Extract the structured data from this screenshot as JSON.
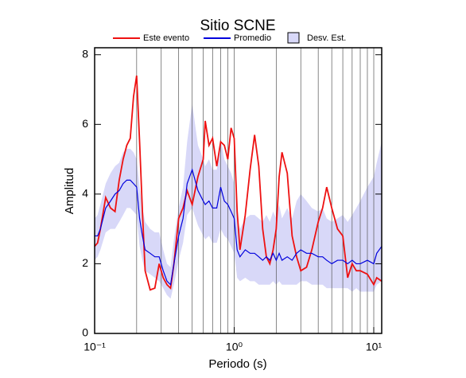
{
  "chart_data": {
    "type": "line",
    "title": "Sitio SCNE",
    "xlabel": "Periodo (s)",
    "ylabel": "Amplitud",
    "log_x": true,
    "xlim": [
      0.1,
      11.4
    ],
    "ylim": [
      0,
      8.2
    ],
    "xticks": [
      {
        "value": 0.1,
        "label": "10⁻¹"
      },
      {
        "value": 1,
        "label": "10⁰"
      },
      {
        "value": 10,
        "label": "10¹"
      }
    ],
    "xminorticks": [
      0.2,
      0.3,
      0.4,
      0.5,
      0.6,
      0.7,
      0.8,
      0.9,
      2,
      3,
      4,
      5,
      6,
      7,
      8,
      9
    ],
    "yticks": [
      0,
      2,
      4,
      6,
      8
    ],
    "grid": true,
    "x": [
      0.1,
      0.105,
      0.11,
      0.12,
      0.13,
      0.14,
      0.15,
      0.16,
      0.17,
      0.18,
      0.19,
      0.2,
      0.21,
      0.22,
      0.23,
      0.25,
      0.27,
      0.29,
      0.31,
      0.33,
      0.35,
      0.37,
      0.4,
      0.43,
      0.46,
      0.5,
      0.55,
      0.6,
      0.62,
      0.66,
      0.7,
      0.75,
      0.8,
      0.85,
      0.9,
      0.95,
      1.0,
      1.05,
      1.1,
      1.2,
      1.3,
      1.4,
      1.5,
      1.6,
      1.7,
      1.8,
      1.9,
      2.0,
      2.1,
      2.2,
      2.4,
      2.6,
      2.8,
      3.0,
      3.3,
      3.6,
      4.0,
      4.3,
      4.6,
      5.0,
      5.5,
      6.0,
      6.5,
      7.0,
      7.5,
      8.0,
      9.0,
      10.0,
      10.5,
      11.4
    ],
    "series": [
      {
        "name": "Este evento",
        "color": "#ee1111",
        "values": [
          2.5,
          2.6,
          3.0,
          3.9,
          3.6,
          3.5,
          4.4,
          5.0,
          5.4,
          5.6,
          6.8,
          7.4,
          5.5,
          3.5,
          1.8,
          1.25,
          1.3,
          2.0,
          1.6,
          1.4,
          1.3,
          2.0,
          3.3,
          3.6,
          4.1,
          3.7,
          4.5,
          5.0,
          6.1,
          5.4,
          5.6,
          4.8,
          5.5,
          5.4,
          5.0,
          5.9,
          5.6,
          3.5,
          2.4,
          3.4,
          4.7,
          5.7,
          4.8,
          3.0,
          2.2,
          2.0,
          2.4,
          3.0,
          4.5,
          5.2,
          4.6,
          2.8,
          2.2,
          1.8,
          1.9,
          2.4,
          3.2,
          3.6,
          4.2,
          3.6,
          3.0,
          2.8,
          1.6,
          2.0,
          1.8,
          1.8,
          1.7,
          1.4,
          1.6,
          1.5
        ]
      },
      {
        "name": "Promedio",
        "color": "#0000dd",
        "values": [
          2.8,
          2.8,
          3.0,
          3.6,
          3.8,
          4.0,
          4.1,
          4.3,
          4.4,
          4.4,
          4.3,
          4.2,
          3.3,
          2.8,
          2.4,
          2.3,
          2.2,
          2.2,
          1.8,
          1.5,
          1.4,
          2.0,
          2.8,
          3.3,
          4.3,
          4.7,
          4.1,
          3.8,
          3.7,
          3.8,
          3.6,
          3.6,
          4.2,
          3.8,
          3.7,
          3.5,
          3.3,
          2.4,
          2.2,
          2.4,
          2.3,
          2.3,
          2.2,
          2.1,
          2.2,
          2.1,
          2.3,
          2.1,
          2.3,
          2.1,
          2.2,
          2.1,
          2.3,
          2.4,
          2.3,
          2.3,
          2.2,
          2.2,
          2.1,
          2.0,
          2.1,
          2.1,
          2.0,
          2.1,
          2.0,
          2.0,
          2.1,
          2.0,
          2.3,
          2.5
        ]
      }
    ],
    "band": {
      "name": "Desv. Est.",
      "color": "#d8d8f8",
      "lower": [
        2.1,
        2.2,
        2.4,
        2.9,
        3.0,
        3.0,
        3.2,
        3.4,
        3.6,
        3.6,
        3.5,
        3.4,
        2.5,
        2.1,
        1.8,
        1.7,
        1.6,
        1.5,
        1.3,
        1.1,
        1.0,
        1.4,
        2.1,
        2.6,
        3.4,
        3.6,
        3.1,
        2.8,
        2.7,
        2.8,
        2.6,
        2.6,
        3.0,
        2.8,
        2.7,
        2.5,
        2.3,
        1.6,
        1.5,
        1.6,
        1.5,
        1.5,
        1.4,
        1.4,
        1.4,
        1.4,
        1.5,
        1.4,
        1.5,
        1.4,
        1.4,
        1.4,
        1.4,
        1.5,
        1.5,
        1.4,
        1.4,
        1.4,
        1.3,
        1.3,
        1.3,
        1.3,
        1.3,
        1.2,
        1.3,
        1.2,
        1.2,
        1.2,
        1.4,
        1.5
      ],
      "upper": [
        3.3,
        3.4,
        3.7,
        4.3,
        4.6,
        4.8,
        4.9,
        5.2,
        5.3,
        5.3,
        5.2,
        5.0,
        4.2,
        3.6,
        3.2,
        3.0,
        2.9,
        2.9,
        2.4,
        2.0,
        1.9,
        2.7,
        3.6,
        4.2,
        5.5,
        6.6,
        5.4,
        5.0,
        4.8,
        5.0,
        4.7,
        4.7,
        5.6,
        5.0,
        4.8,
        4.6,
        4.3,
        3.3,
        3.0,
        3.3,
        3.4,
        3.4,
        3.3,
        3.2,
        3.4,
        3.2,
        3.5,
        3.3,
        3.7,
        3.3,
        3.6,
        3.3,
        3.8,
        4.0,
        3.8,
        3.6,
        3.5,
        3.6,
        3.3,
        3.2,
        3.3,
        3.4,
        3.2,
        3.4,
        3.6,
        3.8,
        4.2,
        4.5,
        4.9,
        5.5
      ]
    }
  }
}
